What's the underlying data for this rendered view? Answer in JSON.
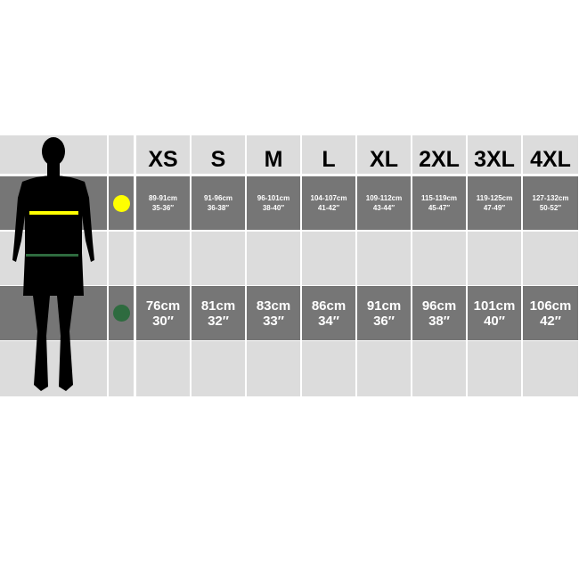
{
  "sizes": [
    "XS",
    "S",
    "M",
    "L",
    "XL",
    "2XL",
    "3XL",
    "4XL"
  ],
  "chest": {
    "marker_color": "#ffff00",
    "values": [
      {
        "cm": "89-91cm",
        "in": "35-36″"
      },
      {
        "cm": "91-96cm",
        "in": "36-38″"
      },
      {
        "cm": "96-101cm",
        "in": "38-40″"
      },
      {
        "cm": "104-107cm",
        "in": "41-42″"
      },
      {
        "cm": "109-112cm",
        "in": "43-44″"
      },
      {
        "cm": "115-119cm",
        "in": "45-47″"
      },
      {
        "cm": "119-125cm",
        "in": "47-49″"
      },
      {
        "cm": "127-132cm",
        "in": "50-52″"
      }
    ]
  },
  "waist": {
    "marker_color": "#2e6b3f",
    "values": [
      {
        "cm": "76cm",
        "in": "30″"
      },
      {
        "cm": "81cm",
        "in": "32″"
      },
      {
        "cm": "83cm",
        "in": "33″"
      },
      {
        "cm": "86cm",
        "in": "34″"
      },
      {
        "cm": "91cm",
        "in": "36″"
      },
      {
        "cm": "96cm",
        "in": "38″"
      },
      {
        "cm": "101cm",
        "in": "40″"
      },
      {
        "cm": "106cm",
        "in": "42″"
      }
    ]
  },
  "colors": {
    "light": "#dcdcdc",
    "dark": "#767676"
  }
}
